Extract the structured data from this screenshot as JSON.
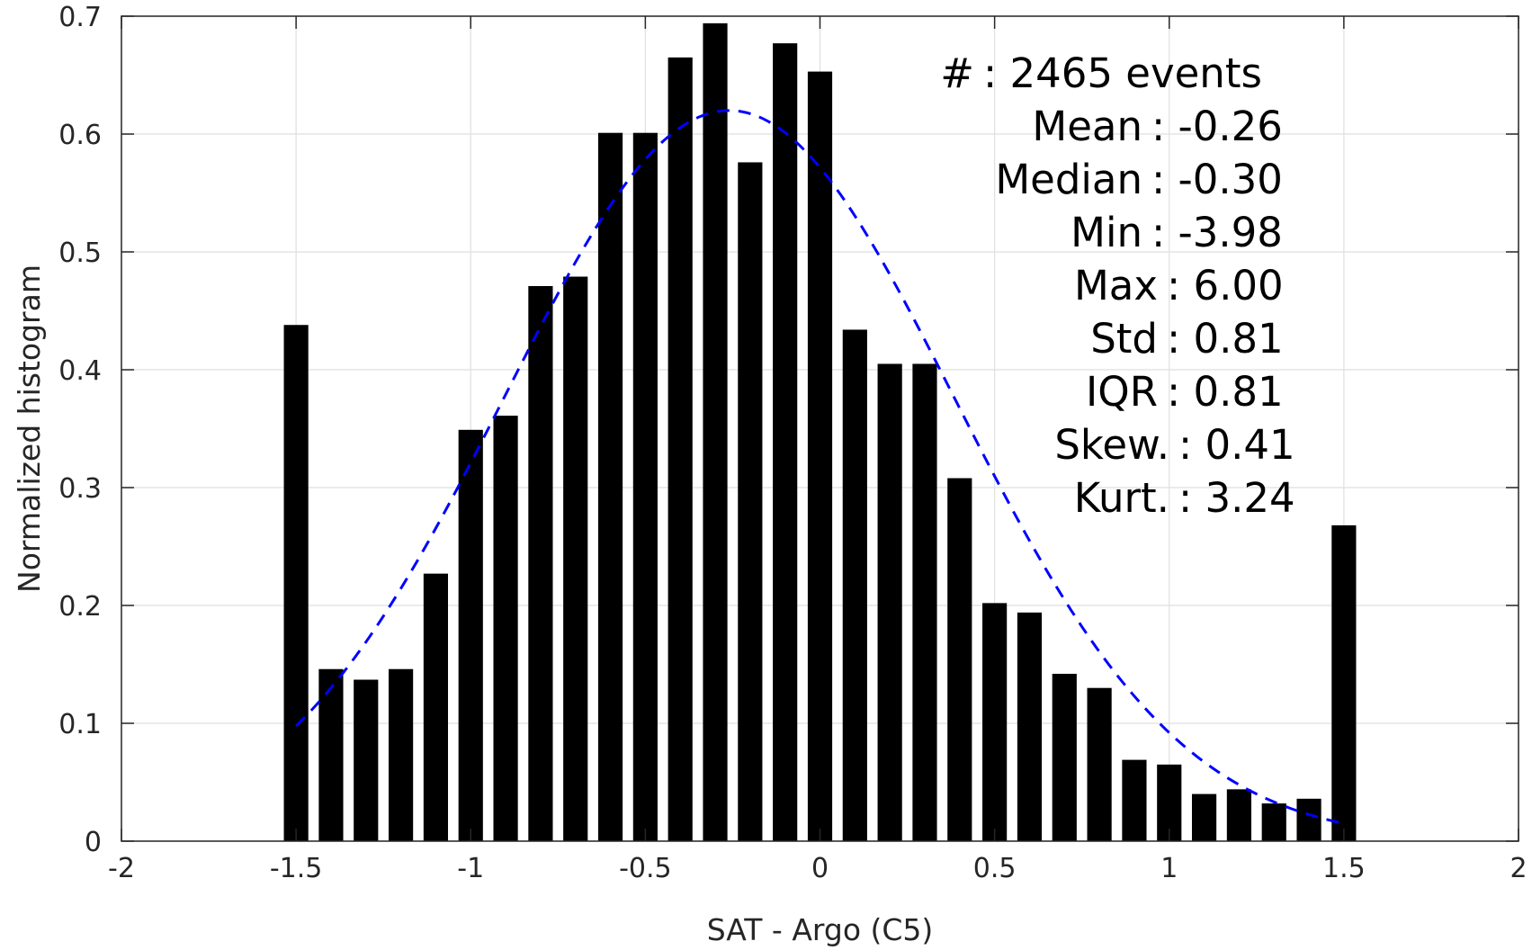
{
  "chart_data": {
    "type": "bar",
    "xlabel": "SAT - Argo (C5)",
    "ylabel": "Normalized histogram",
    "xlim": [
      -2,
      2
    ],
    "ylim": [
      0,
      0.7
    ],
    "xticks": [
      -2,
      -1.5,
      -1,
      -0.5,
      0,
      0.5,
      1,
      1.5,
      2
    ],
    "xtick_labels": [
      "-2",
      "-1.5",
      "-1",
      "-0.5",
      "0",
      "0.5",
      "1",
      "1.5",
      "2"
    ],
    "yticks": [
      0,
      0.1,
      0.2,
      0.3,
      0.4,
      0.5,
      0.6,
      0.7
    ],
    "ytick_labels": [
      "0",
      "0.1",
      "0.2",
      "0.3",
      "0.4",
      "0.5",
      "0.6",
      "0.7"
    ],
    "grid": true,
    "bar_width": 0.07,
    "x": [
      -1.5,
      -1.4,
      -1.3,
      -1.2,
      -1.1,
      -1.0,
      -0.9,
      -0.8,
      -0.7,
      -0.6,
      -0.5,
      -0.4,
      -0.3,
      -0.2,
      -0.1,
      0.0,
      0.1,
      0.2,
      0.3,
      0.4,
      0.5,
      0.6,
      0.7,
      0.8,
      0.9,
      1.0,
      1.1,
      1.2,
      1.3,
      1.4,
      1.5
    ],
    "values": [
      0.438,
      0.146,
      0.137,
      0.146,
      0.227,
      0.349,
      0.361,
      0.471,
      0.479,
      0.601,
      0.601,
      0.665,
      0.694,
      0.576,
      0.677,
      0.653,
      0.434,
      0.405,
      0.405,
      0.308,
      0.202,
      0.194,
      0.142,
      0.13,
      0.069,
      0.065,
      0.04,
      0.044,
      0.032,
      0.036,
      0.268
    ],
    "bar_color": "#000000",
    "fit_curve": {
      "style": "dashed",
      "color": "#0000ff",
      "x_range": [
        -1.5,
        1.5
      ],
      "mean": -0.26,
      "std": 0.645,
      "peak": 0.62
    },
    "annotations": [
      {
        "label": "#",
        "value": ": 2465 events"
      },
      {
        "label": "Mean",
        "value": ": -0.26"
      },
      {
        "label": "Median",
        "value": ": -0.30"
      },
      {
        "label": "Min",
        "value": ": -3.98"
      },
      {
        "label": "Max",
        "value": ": 6.00"
      },
      {
        "label": "Std",
        "value": ": 0.81"
      },
      {
        "label": "IQR",
        "value": ": 0.81"
      },
      {
        "label": "Skew.",
        "value": ": 0.41"
      },
      {
        "label": "Kurt.",
        "value": ": 3.24"
      }
    ]
  }
}
